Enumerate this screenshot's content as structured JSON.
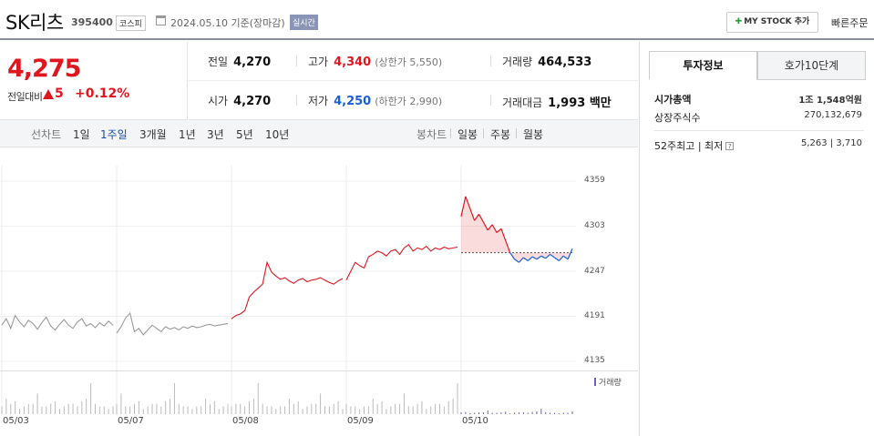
{
  "header": {
    "name": "SK리츠",
    "code": "395400",
    "market": "코스피",
    "date": "2024.05.10 기준(장마감)",
    "live": "실시간",
    "my_stock": "MY STOCK 추가",
    "quick_order": "빠른주문"
  },
  "price": {
    "current": "4,275",
    "change_label": "전일대비",
    "change": "5",
    "change_pct": "+0.12%"
  },
  "stats": {
    "prev_close": {
      "label": "전일",
      "value": "4,270"
    },
    "high": {
      "label": "고가",
      "value": "4,340",
      "sub": "(상한가 5,550)"
    },
    "volume": {
      "label": "거래량",
      "value": "464,533"
    },
    "open": {
      "label": "시가",
      "value": "4,270"
    },
    "low": {
      "label": "저가",
      "value": "4,250",
      "sub": "(하한가 2,990)"
    },
    "amount": {
      "label": "거래대금",
      "value": "1,993 백만"
    }
  },
  "tabs": {
    "line_chart": "선차트",
    "periods": [
      "1일",
      "1주일",
      "3개월",
      "1년",
      "3년",
      "5년",
      "10년"
    ],
    "active_period": "1주일",
    "candle_chart": "봉차트",
    "candles": [
      "일봉",
      "주봉",
      "월봉"
    ]
  },
  "panel": {
    "tab_invest": "투자정보",
    "tab_orderbook": "호가10단계",
    "market_cap_label": "시가총액",
    "market_cap_value": "1조 1,548억원",
    "shares_label": "상장주식수",
    "shares_value": "270,132,679",
    "week52_label": "52주최고 | 최저",
    "week52_value": "5,263 | 3,710"
  },
  "colors": {
    "up": "#e0161e",
    "down": "#1a5fd6",
    "prev_days": "#9a9a9a",
    "volume": "#6a5fc1"
  },
  "chart_data": {
    "type": "line",
    "yticks": [
      4359,
      4303,
      4247,
      4191,
      4135
    ],
    "ylim": [
      4135,
      4359
    ],
    "xticks": [
      "05/03",
      "05/07",
      "05/08",
      "05/09",
      "05/10"
    ],
    "volume_label": "거래량",
    "reference_price": 4270,
    "series": [
      {
        "day": "05/03",
        "values": [
          4180,
          4188,
          4176,
          4192,
          4184,
          4178,
          4186,
          4182,
          4175,
          4183,
          4190,
          4179,
          4174,
          4181,
          4187,
          4180,
          4176,
          4184,
          4188,
          4179,
          4182,
          4177,
          4183,
          4179,
          4185,
          4180
        ]
      },
      {
        "day": "05/07",
        "values": [
          4170,
          4178,
          4189,
          4195,
          4172,
          4176,
          4168,
          4174,
          4180,
          4176,
          4172,
          4178,
          4175,
          4177,
          4174,
          4178,
          4176,
          4179,
          4177,
          4178,
          4180,
          4181,
          4179,
          4180,
          4181,
          4182
        ]
      },
      {
        "day": "05/08",
        "values": [
          4188,
          4192,
          4194,
          4198,
          4215,
          4221,
          4226,
          4231,
          4258,
          4246,
          4241,
          4237,
          4239,
          4235,
          4232,
          4236,
          4238,
          4234,
          4236,
          4237,
          4239,
          4236,
          4233,
          4231,
          4235,
          4238
        ]
      },
      {
        "day": "05/09",
        "values": [
          4236,
          4247,
          4258,
          4254,
          4251,
          4265,
          4268,
          4272,
          4270,
          4266,
          4272,
          4274,
          4268,
          4276,
          4280,
          4272,
          4276,
          4274,
          4278,
          4272,
          4276,
          4274,
          4277,
          4275,
          4276,
          4277
        ]
      },
      {
        "day": "05/10",
        "values": [
          4315,
          4340,
          4325,
          4310,
          4318,
          4308,
          4298,
          4305,
          4295,
          4300,
          4285,
          4270,
          4262,
          4258,
          4264,
          4260,
          4265,
          4262,
          4266,
          4263,
          4268,
          4264,
          4260,
          4266,
          4262,
          4275
        ]
      }
    ],
    "volume": [
      3,
      6,
      4,
      5,
      2,
      3,
      4,
      4,
      8,
      3,
      3,
      4,
      5,
      2,
      3,
      4,
      4,
      3,
      5,
      6,
      12,
      4,
      3,
      3,
      2,
      3
    ]
  }
}
